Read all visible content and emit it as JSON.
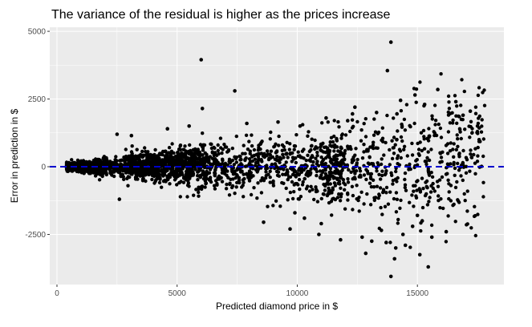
{
  "chart_data": {
    "type": "scatter",
    "title": "The variance of the residual is higher as the prices increase",
    "xlabel": "Predicted diamond price in $",
    "ylabel": "Error in prediction in $",
    "xlim": [
      -300,
      18600
    ],
    "ylim": [
      -4350,
      5150
    ],
    "x_ticks": [
      0,
      5000,
      10000,
      15000
    ],
    "x_tick_labels": [
      "0",
      "5000",
      "10000",
      "15000"
    ],
    "y_ticks": [
      -2500,
      0,
      2500,
      5000
    ],
    "y_tick_labels": [
      "-2500",
      "0",
      "2500",
      "5000"
    ],
    "grid": true,
    "reference_line": {
      "y": 0,
      "style": "dashed",
      "color": "#0000cc"
    },
    "point_color": "#000000",
    "background_color": "#ebebeb",
    "series": [
      {
        "x": [
          6000,
          13900,
          7400,
          6050,
          14150,
          13750,
          14300,
          12400,
          14900,
          15850,
          13900,
          15450,
          14050,
          12850,
          14100,
          14500,
          13700,
          15100,
          15600,
          16200,
          9700,
          10900,
          8600,
          11800,
          16600,
          17200,
          17500,
          12100,
          15300,
          16900,
          3100,
          4600,
          5500,
          7900,
          9200,
          11200,
          13300,
          2600,
          2500,
          14800,
          15200,
          12700,
          13100,
          13500,
          14400,
          15000,
          11000,
          10300,
          9900,
          12300
        ],
        "y": [
          3950,
          4600,
          2800,
          2150,
          1950,
          3550,
          2450,
          2200,
          2650,
          2850,
          -4050,
          -3700,
          -3400,
          -3200,
          -3000,
          -2900,
          -2800,
          -3250,
          -2600,
          -2400,
          -2300,
          -2500,
          -2050,
          -2700,
          2400,
          2050,
          1500,
          1700,
          2300,
          1900,
          1150,
          1400,
          1500,
          1600,
          1650,
          1800,
          2000,
          -1200,
          1200,
          -2200,
          -2000,
          -2600,
          -2750,
          -2350,
          -2500,
          -1800,
          -2100,
          -1900,
          -1700,
          1950
        ]
      }
    ]
  }
}
